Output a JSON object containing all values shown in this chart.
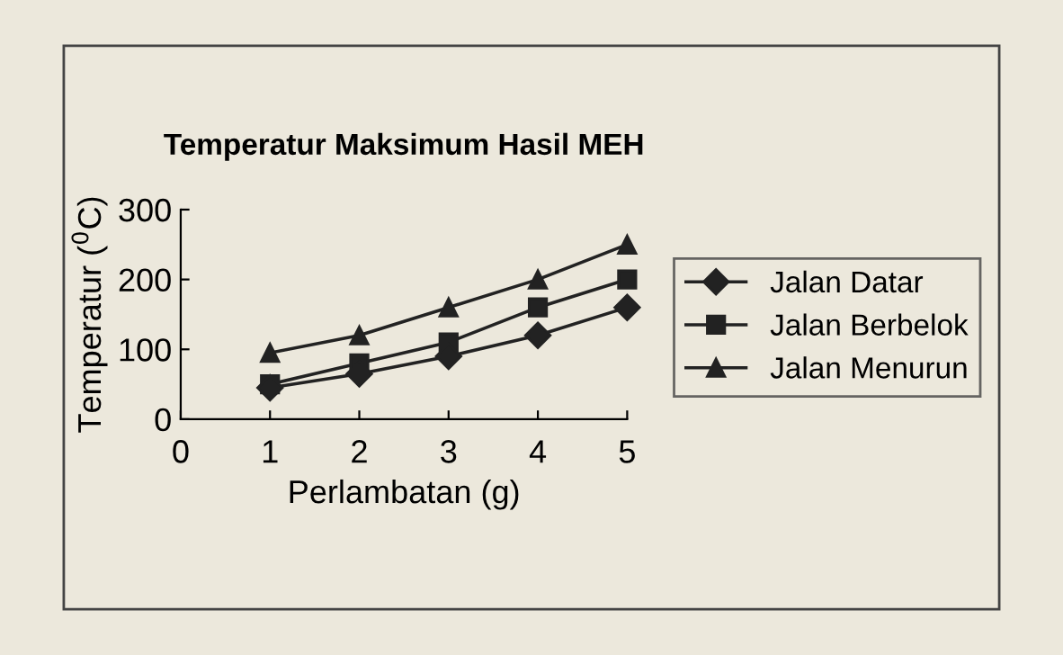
{
  "chart_data": {
    "type": "line",
    "title": "Temperatur Maksimum Hasil MEH",
    "xlabel": "Perlambatan (g)",
    "ylabel": "Temperatur ($^{0}$C)",
    "x": [
      1,
      2,
      3,
      4,
      5
    ],
    "series": [
      {
        "name": "Jalan Datar",
        "color": "#222222",
        "marker": "diamond",
        "values": [
          45,
          65,
          90,
          120,
          160
        ]
      },
      {
        "name": "Jalan Berbelok",
        "color": "#222222",
        "marker": "square",
        "values": [
          50,
          80,
          110,
          160,
          200
        ]
      },
      {
        "name": "Jalan Menurun",
        "color": "#222222",
        "marker": "triangle",
        "values": [
          95,
          120,
          160,
          200,
          250
        ]
      }
    ],
    "xlim": [
      0,
      5
    ],
    "xticks": [
      0,
      1,
      2,
      3,
      4,
      5
    ],
    "ylim": [
      0,
      300
    ],
    "yticks": [
      0,
      100,
      200,
      300
    ],
    "grid": false,
    "legend": "right",
    "line_style": "solid"
  }
}
